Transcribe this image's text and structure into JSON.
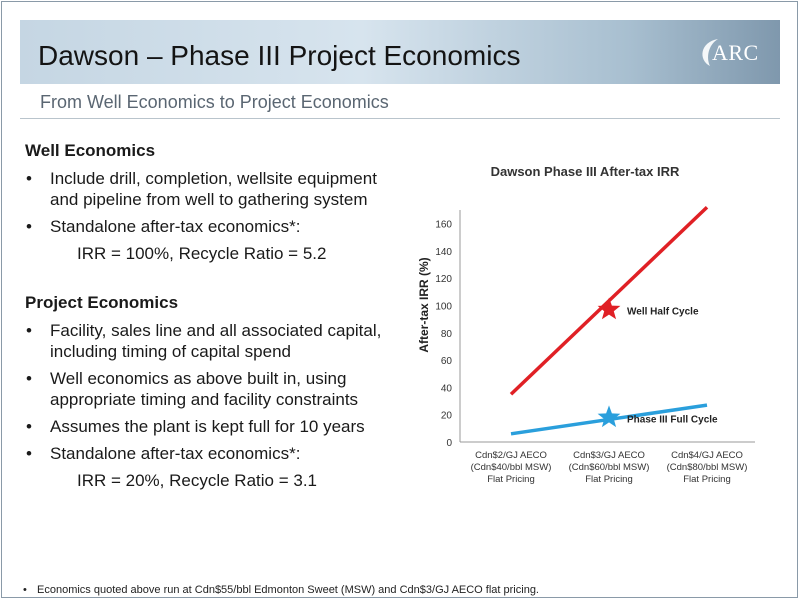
{
  "slide": {
    "title": "Dawson – Phase III Project Economics",
    "subtitle": "From Well Economics to Project Economics",
    "logo_text": "ARC"
  },
  "well_economics": {
    "heading": "Well Economics",
    "bullets": [
      "Include drill, completion, wellsite equipment and pipeline from well to gathering system",
      "Standalone after-tax economics*:"
    ],
    "result": "IRR = 100%, Recycle Ratio = 5.2"
  },
  "project_economics": {
    "heading": "Project Economics",
    "bullets": [
      "Facility, sales line and all associated capital, including timing of capital spend",
      "Well economics as above built in, using appropriate timing and facility constraints",
      "Assumes the plant is kept full for 10 years",
      "Standalone after-tax economics*:"
    ],
    "result": "IRR = 20%, Recycle Ratio = 3.1"
  },
  "footnote": "Economics quoted above run at Cdn$55/bbl Edmonton Sweet (MSW) and Cdn$3/GJ AECO flat pricing.",
  "chart_data": {
    "type": "line",
    "title": "Dawson Phase III After-tax IRR",
    "ylabel": "After-tax IRR (%)",
    "xlabel": "",
    "ylim": [
      0,
      170
    ],
    "yticks": [
      0,
      20,
      40,
      60,
      80,
      100,
      120,
      140,
      160
    ],
    "grid": false,
    "categories": [
      [
        "Cdn$2/GJ AECO",
        "(Cdn$40/bbl MSW)",
        "Flat Pricing"
      ],
      [
        "Cdn$3/GJ AECO",
        "(Cdn$60/bbl MSW)",
        "Flat Pricing"
      ],
      [
        "Cdn$4/GJ AECO",
        "(Cdn$80/bbl MSW)",
        "Flat Pricing"
      ]
    ],
    "series": [
      {
        "name": "Well Half Cycle",
        "color": "#e02025",
        "start": [
          0,
          35
        ],
        "end": [
          2,
          172
        ],
        "marker": [
          1,
          97
        ]
      },
      {
        "name": "Phase III Full Cycle",
        "color": "#2a9fdc",
        "start": [
          0,
          6
        ],
        "end": [
          2,
          27
        ],
        "marker": [
          1,
          18
        ]
      }
    ]
  }
}
